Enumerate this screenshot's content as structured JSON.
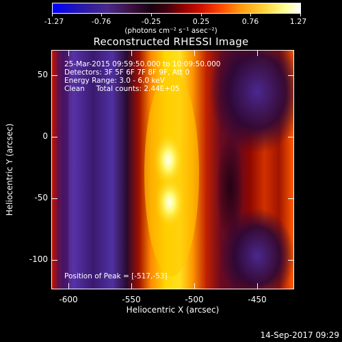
{
  "colorbar": {
    "tick_labels": [
      "-1.27",
      "-0.76",
      "-0.25",
      "0.25",
      "0.76",
      "1.27"
    ],
    "units": "(photons cm⁻² s⁻¹ asec⁻²)",
    "colors": [
      "#0000ff",
      "#4a2a8a",
      "#1a0010",
      "#d01000",
      "#ffd640",
      "#ffffff"
    ]
  },
  "plot": {
    "title": "Reconstructed RHESSI Image",
    "overlay": {
      "time_range": "25-Mar-2015 09:59:50.000 to 10:09:50.000",
      "detectors": "Detectors: 3F 5F 6F 7F 8F 9F, Att 0",
      "energy_range": "Energy Range: 3.0 - 6.0 keV",
      "method_counts": "Clean     Total counts: 2.44E+05",
      "peak": "Position of Peak = [-517,-53]"
    },
    "x_axis": {
      "label": "Heliocentric X (arcsec)",
      "ticks": [
        "-600",
        "-550",
        "-500",
        "-450"
      ],
      "range": [
        -612,
        -420
      ]
    },
    "y_axis": {
      "label": "Heliocentric Y (arcsec)",
      "ticks": [
        "50",
        "0",
        "-50",
        "-100"
      ],
      "range": [
        -122,
        68
      ]
    }
  },
  "timestamp": "14-Sep-2017 09:29"
}
